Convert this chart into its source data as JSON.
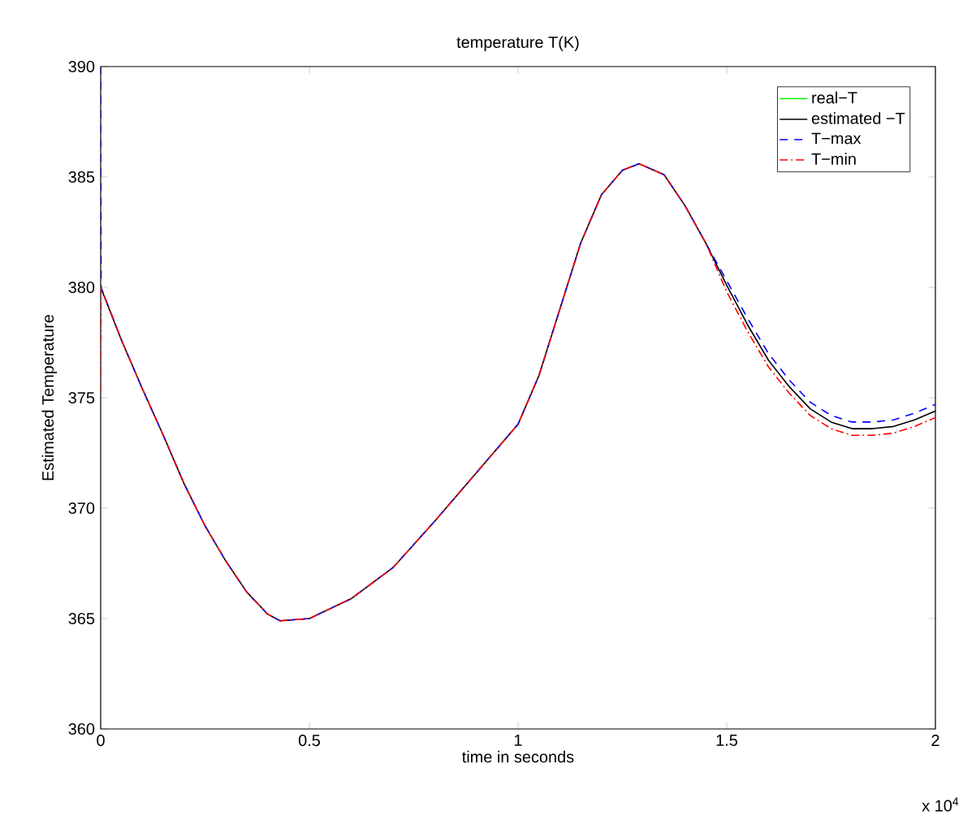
{
  "chart_data": {
    "type": "line",
    "title": "temperature T(K)",
    "xlabel": "time in seconds",
    "ylabel": "Estimated Temperature",
    "annotations": [
      "x 10$^{4}$"
    ],
    "xlim": [
      0,
      2
    ],
    "xticks": [
      0,
      0.5,
      1,
      1.5,
      2
    ],
    "ylim": [
      360,
      390
    ],
    "yticks": [
      360,
      365,
      370,
      375,
      380,
      385,
      390
    ],
    "legend": "top right",
    "grid": false,
    "series": [
      {
        "name": "real−T",
        "color": "#00ff00",
        "line_style": "solid"
      },
      {
        "name": "estimated −T",
        "color": "#000000",
        "line_style": "solid",
        "x": [
          0,
          0.05,
          0.1,
          0.15,
          0.2,
          0.25,
          0.3,
          0.35,
          0.4,
          0.43,
          0.5,
          0.6,
          0.7,
          0.8,
          0.9,
          1.0,
          1.05,
          1.1,
          1.15,
          1.2,
          1.25,
          1.29,
          1.35,
          1.4,
          1.45,
          1.5,
          1.55,
          1.6,
          1.65,
          1.7,
          1.75,
          1.8,
          1.85,
          1.9,
          1.95,
          2.0
        ],
        "values": [
          380,
          377.6,
          375.4,
          373.3,
          371.1,
          369.2,
          367.6,
          366.2,
          365.2,
          364.9,
          365.0,
          365.9,
          367.3,
          369.4,
          371.6,
          373.8,
          376.0,
          379.0,
          382.0,
          384.2,
          385.3,
          385.6,
          385.1,
          383.7,
          382.0,
          380.1,
          378.3,
          376.7,
          375.5,
          374.5,
          373.9,
          373.6,
          373.6,
          373.7,
          374.0,
          374.4
        ]
      },
      {
        "name": "T−max",
        "color": "#0000ff",
        "line_style": "dashed",
        "x": [
          0,
          0.001,
          0.05,
          0.1,
          0.15,
          0.2,
          0.25,
          0.3,
          0.35,
          0.4,
          0.43,
          0.5,
          0.6,
          0.7,
          0.8,
          0.9,
          1.0,
          1.05,
          1.1,
          1.15,
          1.2,
          1.25,
          1.29,
          1.35,
          1.4,
          1.45,
          1.5,
          1.55,
          1.6,
          1.65,
          1.7,
          1.75,
          1.8,
          1.85,
          1.9,
          1.95,
          2.0
        ],
        "values": [
          390,
          380,
          377.6,
          375.4,
          373.3,
          371.1,
          369.2,
          367.6,
          366.2,
          365.2,
          364.9,
          365.0,
          365.9,
          367.3,
          369.4,
          371.6,
          373.8,
          376.0,
          379.0,
          382.0,
          384.2,
          385.3,
          385.6,
          385.1,
          383.7,
          382.0,
          380.3,
          378.6,
          377.0,
          375.8,
          374.8,
          374.2,
          373.9,
          373.9,
          374.0,
          374.3,
          374.7
        ]
      },
      {
        "name": "T−min",
        "color": "#ff0000",
        "line_style": "dashdot",
        "x": [
          0,
          0.001,
          0.05,
          0.1,
          0.15,
          0.2,
          0.25,
          0.3,
          0.35,
          0.4,
          0.43,
          0.5,
          0.6,
          0.7,
          0.8,
          0.9,
          1.0,
          1.05,
          1.1,
          1.15,
          1.2,
          1.25,
          1.29,
          1.35,
          1.4,
          1.45,
          1.5,
          1.55,
          1.6,
          1.65,
          1.7,
          1.75,
          1.8,
          1.85,
          1.9,
          1.95,
          2.0
        ],
        "values": [
          375.3,
          380,
          377.6,
          375.4,
          373.3,
          371.1,
          369.2,
          367.6,
          366.2,
          365.2,
          364.9,
          365.0,
          365.9,
          367.3,
          369.4,
          371.6,
          373.8,
          376.0,
          379.0,
          382.0,
          384.2,
          385.3,
          385.6,
          385.1,
          383.7,
          382.0,
          379.8,
          378.0,
          376.4,
          375.2,
          374.2,
          373.6,
          373.3,
          373.3,
          373.4,
          373.7,
          374.1
        ]
      }
    ]
  }
}
